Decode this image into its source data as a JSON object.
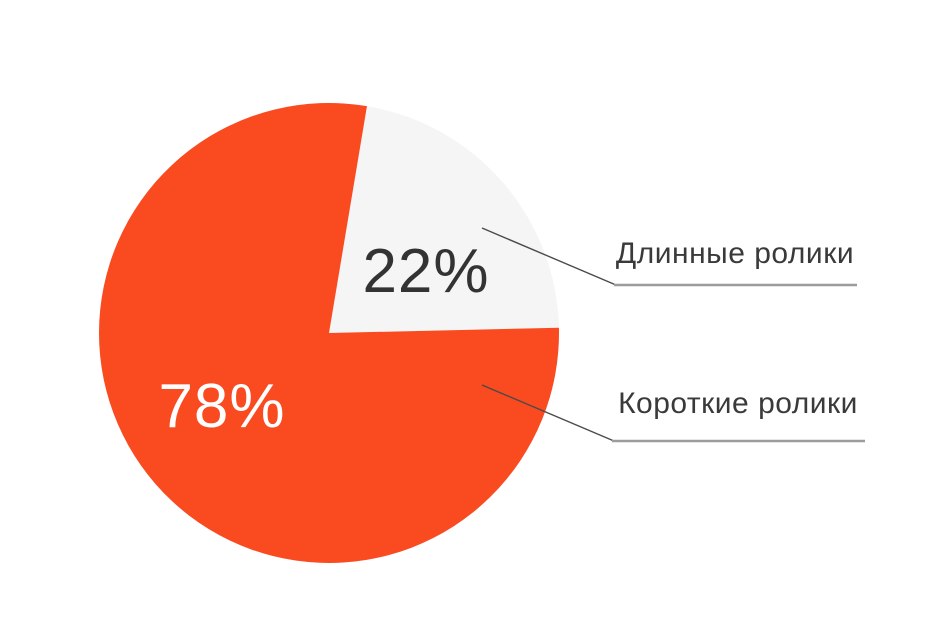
{
  "chart_data": {
    "type": "pie",
    "title": "",
    "categories": [
      "Длинные ролики",
      "Короткие ролики"
    ],
    "values": [
      22,
      78
    ],
    "slices": [
      {
        "label": "Длинные ролики",
        "value": 22,
        "pct_label": "22%",
        "color": "#F5F5F5",
        "pct_label_color": "#333333"
      },
      {
        "label": "Короткие ролики",
        "value": 78,
        "pct_label": "78%",
        "color": "#F94A20",
        "pct_label_color": "#FFFFFF"
      }
    ],
    "start_angle_deg": 9.5,
    "legend_position": "right-callouts",
    "background": "#FFFFFF",
    "label_text_color": "#3A3A3A",
    "callout_diagonal_color": "#4A4A4A",
    "callout_underline_color": "#9C9C9C"
  }
}
